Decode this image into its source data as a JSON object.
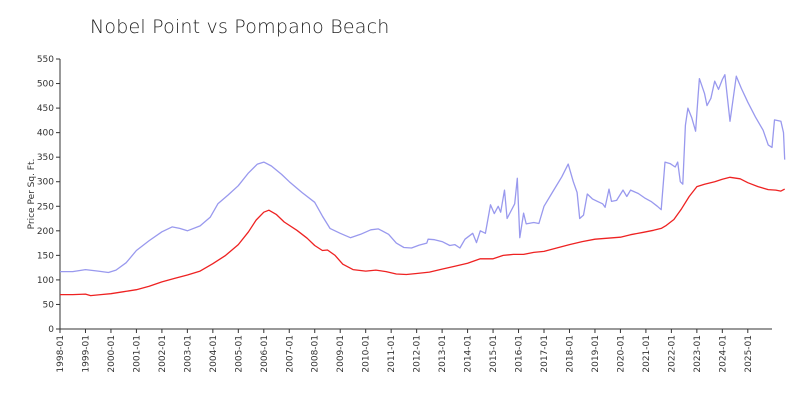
{
  "chart_data": {
    "type": "line",
    "title": "Nobel Point vs Pompano Beach",
    "ylabel": "Price Per Sq. Ft.",
    "xlabel": "",
    "ylim": [
      0,
      550
    ],
    "xlim": [
      1998.0,
      2025.95
    ],
    "grid": false,
    "yticks": [
      0,
      50,
      100,
      150,
      200,
      250,
      300,
      350,
      400,
      450,
      500,
      550
    ],
    "xticks": [
      "1998-01",
      "1999-01",
      "2000-01",
      "2001-01",
      "2002-01",
      "2003-01",
      "2004-01",
      "2005-01",
      "2006-01",
      "2007-01",
      "2008-01",
      "2009-01",
      "2010-01",
      "2011-01",
      "2012-01",
      "2013-01",
      "2014-01",
      "2015-01",
      "2016-01",
      "2017-01",
      "2018-01",
      "2019-01",
      "2020-01",
      "2021-01",
      "2022-01",
      "2023-01",
      "2024-01",
      "2025-01"
    ],
    "series": [
      {
        "color": "#9999ee",
        "points": [
          [
            1998.0,
            117
          ],
          [
            1998.5,
            117
          ],
          [
            1999.0,
            121
          ],
          [
            1999.5,
            118
          ],
          [
            1999.9,
            115
          ],
          [
            2000.2,
            120
          ],
          [
            2000.6,
            135
          ],
          [
            2001.0,
            160
          ],
          [
            2001.5,
            180
          ],
          [
            2002.0,
            198
          ],
          [
            2002.4,
            208
          ],
          [
            2002.7,
            205
          ],
          [
            2003.0,
            200
          ],
          [
            2003.5,
            210
          ],
          [
            2003.9,
            228
          ],
          [
            2004.2,
            255
          ],
          [
            2004.6,
            273
          ],
          [
            2005.0,
            292
          ],
          [
            2005.4,
            318
          ],
          [
            2005.75,
            336
          ],
          [
            2006.0,
            340
          ],
          [
            2006.3,
            332
          ],
          [
            2006.7,
            315
          ],
          [
            2007.0,
            300
          ],
          [
            2007.5,
            278
          ],
          [
            2008.0,
            258
          ],
          [
            2008.3,
            230
          ],
          [
            2008.6,
            205
          ],
          [
            2009.0,
            195
          ],
          [
            2009.4,
            186
          ],
          [
            2009.8,
            193
          ],
          [
            2010.2,
            202
          ],
          [
            2010.5,
            204
          ],
          [
            2010.9,
            193
          ],
          [
            2011.2,
            175
          ],
          [
            2011.5,
            166
          ],
          [
            2011.8,
            165
          ],
          [
            2012.1,
            171
          ],
          [
            2012.4,
            175
          ],
          [
            2012.45,
            183
          ],
          [
            2012.7,
            182
          ],
          [
            2013.0,
            178
          ],
          [
            2013.3,
            170
          ],
          [
            2013.5,
            172
          ],
          [
            2013.7,
            165
          ],
          [
            2013.9,
            183
          ],
          [
            2014.2,
            195
          ],
          [
            2014.35,
            176
          ],
          [
            2014.5,
            200
          ],
          [
            2014.7,
            195
          ],
          [
            2014.9,
            253
          ],
          [
            2015.05,
            235
          ],
          [
            2015.2,
            250
          ],
          [
            2015.3,
            238
          ],
          [
            2015.45,
            283
          ],
          [
            2015.55,
            225
          ],
          [
            2015.85,
            255
          ],
          [
            2015.95,
            307
          ],
          [
            2016.05,
            186
          ],
          [
            2016.2,
            236
          ],
          [
            2016.3,
            214
          ],
          [
            2016.6,
            217
          ],
          [
            2016.8,
            215
          ],
          [
            2017.0,
            250
          ],
          [
            2017.35,
            280
          ],
          [
            2017.7,
            310
          ],
          [
            2017.95,
            336
          ],
          [
            2018.15,
            300
          ],
          [
            2018.3,
            278
          ],
          [
            2018.4,
            225
          ],
          [
            2018.55,
            232
          ],
          [
            2018.7,
            275
          ],
          [
            2018.9,
            265
          ],
          [
            2019.1,
            260
          ],
          [
            2019.3,
            255
          ],
          [
            2019.4,
            248
          ],
          [
            2019.55,
            285
          ],
          [
            2019.65,
            260
          ],
          [
            2019.85,
            262
          ],
          [
            2020.1,
            283
          ],
          [
            2020.25,
            270
          ],
          [
            2020.4,
            283
          ],
          [
            2020.7,
            276
          ],
          [
            2020.95,
            267
          ],
          [
            2021.2,
            260
          ],
          [
            2021.45,
            250
          ],
          [
            2021.6,
            243
          ],
          [
            2021.75,
            340
          ],
          [
            2021.95,
            337
          ],
          [
            2022.15,
            330
          ],
          [
            2022.25,
            340
          ],
          [
            2022.35,
            300
          ],
          [
            2022.45,
            295
          ],
          [
            2022.55,
            415
          ],
          [
            2022.65,
            450
          ],
          [
            2022.8,
            430
          ],
          [
            2022.95,
            403
          ],
          [
            2023.05,
            475
          ],
          [
            2023.1,
            510
          ],
          [
            2023.3,
            480
          ],
          [
            2023.4,
            455
          ],
          [
            2023.55,
            470
          ],
          [
            2023.7,
            505
          ],
          [
            2023.85,
            488
          ],
          [
            2024.0,
            508
          ],
          [
            2024.1,
            518
          ],
          [
            2024.3,
            423
          ],
          [
            2024.55,
            515
          ],
          [
            2024.75,
            490
          ],
          [
            2025.0,
            462
          ],
          [
            2025.3,
            432
          ],
          [
            2025.6,
            405
          ],
          [
            2025.8,
            375
          ],
          [
            2025.95,
            370
          ],
          [
            2026.05,
            426
          ],
          [
            2026.3,
            423
          ],
          [
            2026.4,
            400
          ],
          [
            2026.45,
            345
          ]
        ]
      },
      {
        "color": "#ee2222",
        "points": [
          [
            1998.0,
            70
          ],
          [
            1998.5,
            70
          ],
          [
            1999.0,
            71
          ],
          [
            1999.2,
            68
          ],
          [
            1999.6,
            70
          ],
          [
            2000.0,
            72
          ],
          [
            2000.5,
            76
          ],
          [
            2001.0,
            80
          ],
          [
            2001.5,
            87
          ],
          [
            2002.0,
            96
          ],
          [
            2002.5,
            103
          ],
          [
            2003.0,
            110
          ],
          [
            2003.5,
            118
          ],
          [
            2004.0,
            133
          ],
          [
            2004.5,
            150
          ],
          [
            2005.0,
            172
          ],
          [
            2005.4,
            198
          ],
          [
            2005.7,
            222
          ],
          [
            2006.0,
            238
          ],
          [
            2006.2,
            242
          ],
          [
            2006.5,
            233
          ],
          [
            2006.8,
            218
          ],
          [
            2007.3,
            201
          ],
          [
            2007.7,
            185
          ],
          [
            2008.0,
            170
          ],
          [
            2008.3,
            160
          ],
          [
            2008.5,
            161
          ],
          [
            2008.8,
            150
          ],
          [
            2009.1,
            132
          ],
          [
            2009.5,
            121
          ],
          [
            2010.0,
            118
          ],
          [
            2010.4,
            120
          ],
          [
            2010.8,
            117
          ],
          [
            2011.2,
            112
          ],
          [
            2011.6,
            111
          ],
          [
            2012.0,
            113
          ],
          [
            2012.5,
            116
          ],
          [
            2013.0,
            122
          ],
          [
            2013.5,
            128
          ],
          [
            2014.0,
            134
          ],
          [
            2014.5,
            143
          ],
          [
            2015.0,
            143
          ],
          [
            2015.4,
            150
          ],
          [
            2015.8,
            152
          ],
          [
            2016.2,
            152
          ],
          [
            2016.6,
            156
          ],
          [
            2017.0,
            158
          ],
          [
            2017.5,
            165
          ],
          [
            2018.0,
            172
          ],
          [
            2018.5,
            178
          ],
          [
            2019.0,
            183
          ],
          [
            2019.5,
            185
          ],
          [
            2020.0,
            187
          ],
          [
            2020.4,
            192
          ],
          [
            2020.9,
            197
          ],
          [
            2021.3,
            201
          ],
          [
            2021.6,
            205
          ],
          [
            2021.8,
            211
          ],
          [
            2022.1,
            223
          ],
          [
            2022.4,
            245
          ],
          [
            2022.7,
            270
          ],
          [
            2023.0,
            290
          ],
          [
            2023.3,
            295
          ],
          [
            2023.7,
            300
          ],
          [
            2024.0,
            305
          ],
          [
            2024.3,
            309
          ],
          [
            2024.7,
            306
          ],
          [
            2025.0,
            298
          ],
          [
            2025.4,
            290
          ],
          [
            2025.8,
            284
          ],
          [
            2026.1,
            283
          ],
          [
            2026.3,
            281
          ],
          [
            2026.45,
            285
          ]
        ]
      }
    ]
  }
}
